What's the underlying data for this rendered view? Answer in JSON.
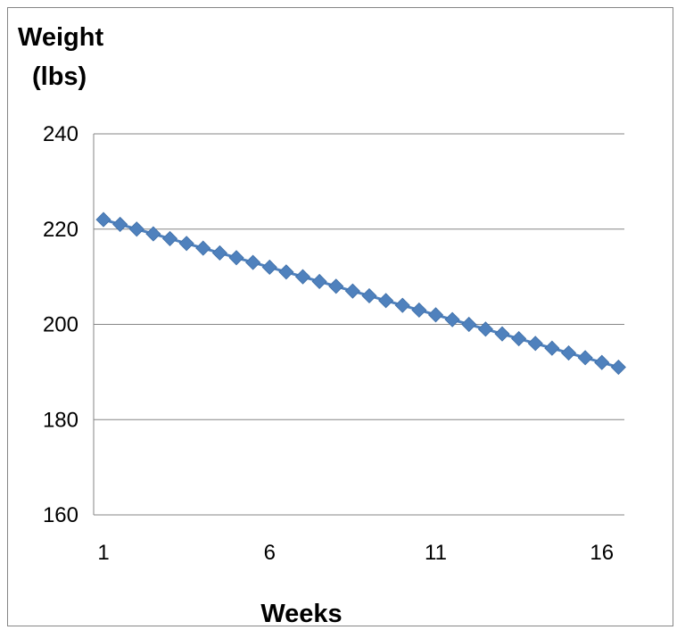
{
  "chart_data": {
    "type": "line",
    "ylabel_line1": "Weight",
    "ylabel_line2": "(lbs)",
    "xlabel": "Weeks",
    "ylim": [
      160,
      240
    ],
    "y_ticks": [
      "160",
      "180",
      "200",
      "220",
      "240"
    ],
    "x_ticks": [
      "1",
      "6",
      "11",
      "16"
    ],
    "x_range": [
      1,
      16.5
    ],
    "grid": "horizontal",
    "legend": "none",
    "marker": "diamond",
    "color": "#4F81BD",
    "series": [
      {
        "x": [
          1,
          1.5,
          2,
          2.5,
          3,
          3.5,
          4,
          4.5,
          5,
          5.5,
          6,
          6.5,
          7,
          7.5,
          8,
          8.5,
          9,
          9.5,
          10,
          10.5,
          11,
          11.5,
          12,
          12.5,
          13,
          13.5,
          14,
          14.5,
          15,
          15.5,
          16,
          16.5
        ],
        "values": [
          222,
          221,
          220,
          219,
          218,
          217,
          216,
          215,
          214,
          213,
          212,
          211,
          210,
          209,
          208,
          207,
          206,
          205,
          204,
          203,
          202,
          201,
          200,
          199,
          198,
          197,
          196,
          195,
          194,
          193,
          192,
          191
        ]
      }
    ]
  }
}
